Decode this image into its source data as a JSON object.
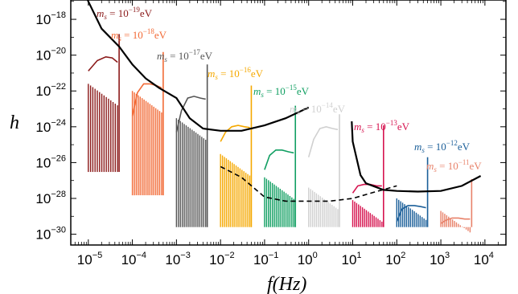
{
  "chart_data": {
    "type": "line",
    "xlabel": "f(Hz)",
    "ylabel": "h",
    "x_scale": "log",
    "y_scale": "log",
    "xlim": [
      4e-06,
      30000.0
    ],
    "ylim": [
      2.5e-31,
      1.2e-17
    ],
    "x_ticks": [
      {
        "base": "10",
        "exp": "−5",
        "value": 1e-05
      },
      {
        "base": "10",
        "exp": "−4",
        "value": 0.0001
      },
      {
        "base": "10",
        "exp": "−3",
        "value": 0.001
      },
      {
        "base": "10",
        "exp": "−2",
        "value": 0.01
      },
      {
        "base": "10",
        "exp": "−1",
        "value": 0.1
      },
      {
        "base": "10",
        "exp": "0",
        "value": 1
      },
      {
        "base": "10",
        "exp": "1",
        "value": 10
      },
      {
        "base": "10",
        "exp": "2",
        "value": 100
      },
      {
        "base": "10",
        "exp": "3",
        "value": 1000
      },
      {
        "base": "10",
        "exp": "4",
        "value": 10000
      }
    ],
    "y_ticks": [
      {
        "base": "10",
        "exp": "−18",
        "value": 1e-18
      },
      {
        "base": "10",
        "exp": "−20",
        "value": 1e-20
      },
      {
        "base": "10",
        "exp": "−22",
        "value": 1e-22
      },
      {
        "base": "10",
        "exp": "−24",
        "value": 1e-24
      },
      {
        "base": "10",
        "exp": "−26",
        "value": 1e-26
      },
      {
        "base": "10",
        "exp": "−28",
        "value": 1e-28
      },
      {
        "base": "10",
        "exp": "−30",
        "value": 1e-30
      }
    ],
    "sensitivity_curves": [
      {
        "style": "solid",
        "color": "#000000",
        "points": [
          [
            5e-06,
            5e-16
          ],
          [
            1e-05,
            1e-17
          ],
          [
            2e-05,
            3e-19
          ],
          [
            5e-05,
            3e-20
          ],
          [
            0.0001,
            3e-21
          ],
          [
            0.0002,
            5e-22
          ],
          [
            0.0004,
            1.5e-22
          ],
          [
            0.001,
            4e-23
          ],
          [
            0.002,
            3e-24
          ],
          [
            0.004,
            8e-25
          ],
          [
            0.01,
            6e-25
          ],
          [
            0.03,
            6e-25
          ],
          [
            0.1,
            1.2e-24
          ],
          [
            0.3,
            3e-24
          ],
          [
            1,
            1.2e-23
          ]
        ]
      },
      {
        "style": "dashed",
        "color": "#000000",
        "points": [
          [
            0.01,
            6e-27
          ],
          [
            0.03,
            1.5e-27
          ],
          [
            0.1,
            1.2e-28
          ],
          [
            0.3,
            7e-29
          ],
          [
            1,
            7e-29
          ],
          [
            3,
            7e-29
          ],
          [
            10,
            1e-28
          ],
          [
            30,
            2.2e-28
          ],
          [
            100,
            5e-28
          ]
        ]
      },
      {
        "style": "solid",
        "color": "#000000",
        "points": [
          [
            9.5,
            2e-24
          ],
          [
            10,
            1.5e-25
          ],
          [
            15,
            2e-27
          ],
          [
            20,
            7e-28
          ],
          [
            50,
            3e-28
          ],
          [
            100,
            2.6e-28
          ],
          [
            300,
            2.4e-28
          ],
          [
            1000,
            2.6e-28
          ],
          [
            3000,
            5e-28
          ],
          [
            8000,
            1.8e-27
          ]
        ]
      }
    ],
    "series": [
      {
        "name": "m_s = 10^{-19}eV",
        "label_base": "m",
        "label_sub": "s",
        "label_eq": " = 10",
        "label_exp": "−19",
        "label_unit": "eV",
        "color": "#8b1a1a",
        "peak_f": 5e-05,
        "peak_h": 1.5e-19,
        "x_start": 1e-05,
        "x_end": 4.6e-05,
        "comb_top": 2.5e-22,
        "comb_bottom": 3e-27,
        "comb_count": 14,
        "pre_peak_curve": [
          [
            1e-05,
            1.3e-21
          ],
          [
            1.6e-05,
            5e-21
          ],
          [
            2.5e-05,
            8e-21
          ],
          [
            3.5e-05,
            7e-21
          ],
          [
            4.6e-05,
            4e-21
          ]
        ]
      },
      {
        "name": "m_s = 10^{-18}eV",
        "label_base": "m",
        "label_sub": "s",
        "label_eq": " = 10",
        "label_exp": "−18",
        "label_unit": "eV",
        "color": "#f26a36",
        "peak_f": 0.0005,
        "peak_h": 1.5e-20,
        "x_start": 0.0001,
        "x_end": 0.00046,
        "comb_top": 1e-22,
        "comb_bottom": 1.5e-28,
        "comb_count": 16,
        "pre_peak_curve": [
          [
            0.0001,
            4e-24
          ],
          [
            0.00013,
            8e-23
          ],
          [
            0.00018,
            2.5e-22
          ],
          [
            0.00025,
            2.5e-22
          ],
          [
            0.00035,
            2e-22
          ],
          [
            0.00046,
            1.5e-22
          ]
        ]
      },
      {
        "name": "m_s = 10^{-17}eV",
        "label_base": "m",
        "label_sub": "s",
        "label_eq": " = 10",
        "label_exp": "−17",
        "label_unit": "eV",
        "color": "#555555",
        "peak_f": 0.005,
        "peak_h": 3e-21,
        "x_start": 0.001,
        "x_end": 0.0046,
        "comb_top": 3e-24,
        "comb_bottom": 2.5e-30,
        "comb_count": 16,
        "pre_peak_curve": [
          [
            0.001,
            5e-25
          ],
          [
            0.0013,
            8e-24
          ],
          [
            0.0018,
            4e-23
          ],
          [
            0.0025,
            5e-23
          ],
          [
            0.0035,
            4e-23
          ],
          [
            0.0046,
            3.5e-23
          ]
        ]
      },
      {
        "name": "m_s = 10^{-16}eV",
        "label_base": "m",
        "label_sub": "s",
        "label_eq": " = 10",
        "label_exp": "−16",
        "label_unit": "eV",
        "color": "#f5a800",
        "peak_f": 0.05,
        "peak_h": 2e-22,
        "x_start": 0.01,
        "x_end": 0.046,
        "comb_top": 3e-26,
        "comb_bottom": 2.5e-30,
        "comb_count": 16,
        "pre_peak_curve": [
          [
            0.01,
            1.5e-25
          ],
          [
            0.013,
            5e-25
          ],
          [
            0.018,
            1e-24
          ],
          [
            0.025,
            1.2e-24
          ],
          [
            0.035,
            1e-24
          ],
          [
            0.046,
            9e-25
          ]
        ]
      },
      {
        "name": "m_s = 10^{-15}eV",
        "label_base": "m",
        "label_sub": "s",
        "label_eq": " = 10",
        "label_exp": "−15",
        "label_unit": "eV",
        "color": "#119f62",
        "peak_f": 0.5,
        "peak_h": 1.5e-23,
        "x_start": 0.1,
        "x_end": 0.46,
        "comb_top": 1.5e-27,
        "comb_bottom": 2.5e-30,
        "comb_count": 16,
        "pre_peak_curve": [
          [
            0.1,
            4e-27
          ],
          [
            0.13,
            2.5e-26
          ],
          [
            0.18,
            5e-26
          ],
          [
            0.25,
            5e-26
          ],
          [
            0.35,
            4e-26
          ],
          [
            0.46,
            3.5e-26
          ]
        ]
      },
      {
        "name": "m_s = 10^{-14}eV",
        "label_base": "m",
        "label_sub": "s",
        "label_eq": " = 10",
        "label_exp": "−14",
        "label_unit": "eV",
        "color": "#d0d0d0",
        "peak_f": 5.0,
        "peak_h": 5e-24,
        "x_start": 1.0,
        "x_end": 4.6,
        "comb_top": 4e-28,
        "comb_bottom": 2.5e-30,
        "comb_count": 16,
        "pre_peak_curve": [
          [
            1.0,
            2e-26
          ],
          [
            1.3,
            2e-25
          ],
          [
            1.8,
            8e-25
          ],
          [
            2.5,
            1e-24
          ],
          [
            3.5,
            8e-25
          ],
          [
            4.6,
            7e-25
          ]
        ]
      },
      {
        "name": "m_s = 10^{-13}eV",
        "label_base": "m",
        "label_sub": "s",
        "label_eq": " = 10",
        "label_exp": "−13",
        "label_unit": "eV",
        "color": "#d6134f",
        "peak_f": 50.0,
        "peak_h": 1.2e-24,
        "x_start": 10.0,
        "x_end": 46.0,
        "comb_top": 8e-29,
        "comb_bottom": 2.5e-30,
        "comb_count": 16,
        "pre_peak_curve": [
          [
            10,
            2e-28
          ],
          [
            13,
            5e-28
          ],
          [
            18,
            6e-28
          ],
          [
            25,
            6e-28
          ],
          [
            35,
            5e-28
          ],
          [
            46,
            5e-28
          ]
        ]
      },
      {
        "name": "m_s = 10^{-12}eV",
        "label_base": "m",
        "label_sub": "s",
        "label_eq": " = 10",
        "label_exp": "−12",
        "label_unit": "eV",
        "color": "#1b5f99",
        "peak_f": 500.0,
        "peak_h": 2e-26,
        "x_start": 100.0,
        "x_end": 460.0,
        "comb_top": 1e-28,
        "comb_bottom": 2.5e-30,
        "comb_count": 16,
        "pre_peak_curve": [
          [
            100,
            5e-30
          ],
          [
            130,
            2.5e-29
          ],
          [
            180,
            4e-29
          ],
          [
            250,
            4e-29
          ],
          [
            350,
            3.5e-29
          ],
          [
            460,
            3e-29
          ]
        ]
      },
      {
        "name": "m_s = 10^{-11}eV",
        "label_base": "m",
        "label_sub": "s",
        "label_eq": " = 10",
        "label_exp": "−11",
        "label_unit": "eV",
        "color": "#e8826a",
        "peak_f": 5000.0,
        "peak_h": 1.2e-27,
        "x_start": 1000.0,
        "x_end": 4600.0,
        "comb_top": 2e-29,
        "comb_bottom": 2.5e-30,
        "comb_count": 16,
        "pre_peak_curve": [
          [
            1000,
            4e-30
          ],
          [
            1300,
            6e-30
          ],
          [
            1800,
            8e-30
          ],
          [
            2500,
            8e-30
          ],
          [
            3500,
            7e-30
          ],
          [
            4600,
            7e-30
          ]
        ]
      }
    ]
  }
}
